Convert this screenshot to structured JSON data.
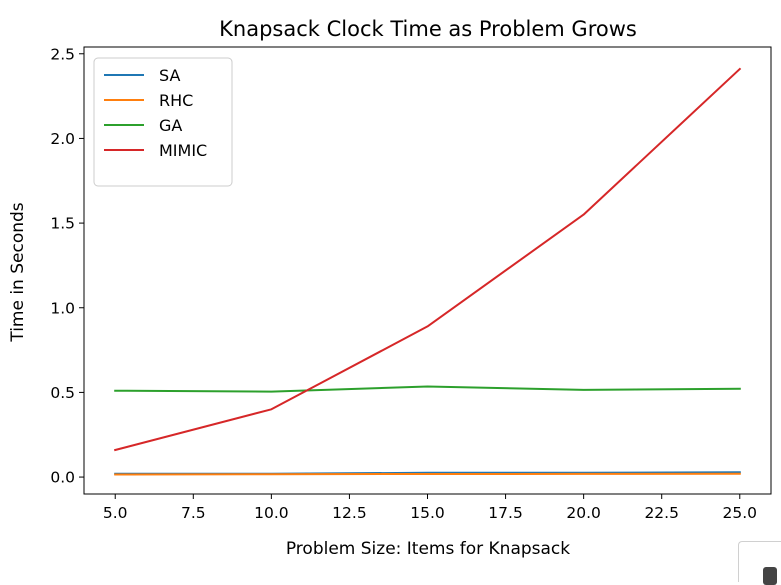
{
  "chart_data": {
    "type": "line",
    "title": "Knapsack Clock Time as Problem Grows",
    "xlabel": "Problem Size: Items for Knapsack",
    "ylabel": "Time in Seconds",
    "x": [
      5,
      10,
      15,
      20,
      25
    ],
    "xlim": [
      4.0,
      26.0
    ],
    "ylim": [
      -0.1,
      2.54
    ],
    "xticks": [
      "5.0",
      "7.5",
      "10.0",
      "12.5",
      "15.0",
      "17.5",
      "20.0",
      "22.5",
      "25.0"
    ],
    "xtick_values": [
      5,
      7.5,
      10,
      12.5,
      15,
      17.5,
      20,
      22.5,
      25
    ],
    "yticks": [
      "0.0",
      "0.5",
      "1.0",
      "1.5",
      "2.0",
      "2.5"
    ],
    "ytick_values": [
      0,
      0.5,
      1.0,
      1.5,
      2.0,
      2.5
    ],
    "grid": false,
    "legend_position": "upper-left",
    "series": [
      {
        "name": "SA",
        "color": "#1f77b4",
        "values": [
          0.02,
          0.02,
          0.025,
          0.025,
          0.028
        ]
      },
      {
        "name": "RHC",
        "color": "#ff7f0e",
        "values": [
          0.015,
          0.017,
          0.018,
          0.019,
          0.02
        ]
      },
      {
        "name": "GA",
        "color": "#2ca02c",
        "values": [
          0.51,
          0.505,
          0.535,
          0.515,
          0.522
        ]
      },
      {
        "name": "MIMIC",
        "color": "#d62728",
        "values": [
          0.16,
          0.4,
          0.89,
          1.55,
          2.41
        ]
      }
    ]
  }
}
